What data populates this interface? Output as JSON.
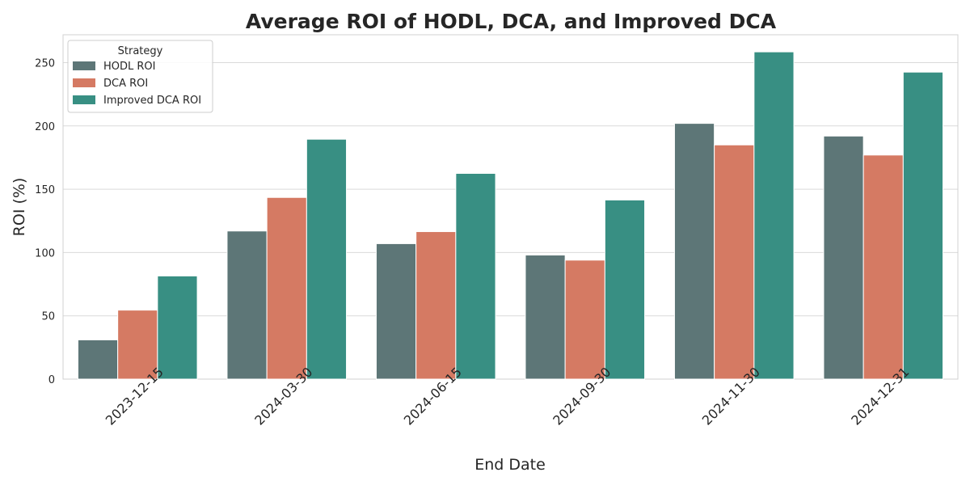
{
  "chart_data": {
    "type": "bar",
    "title": "Average ROI of HODL, DCA, and Improved DCA",
    "xlabel": "End Date",
    "ylabel": "ROI (%)",
    "ylim": [
      0,
      272
    ],
    "yticks": [
      0,
      50,
      100,
      150,
      200,
      250
    ],
    "grid": true,
    "legend": {
      "title": "Strategy",
      "placement": "top-left"
    },
    "categories": [
      "2023-12-15",
      "2024-03-30",
      "2024-06-15",
      "2024-09-30",
      "2024-11-30",
      "2024-12-31"
    ],
    "series": [
      {
        "name": "HODL ROI",
        "color": "#5d7677",
        "values": [
          31,
          117,
          107,
          98,
          202,
          192
        ]
      },
      {
        "name": "DCA ROI",
        "color": "#d57a63",
        "values": [
          54.5,
          143.5,
          116.5,
          94,
          185,
          177
        ]
      },
      {
        "name": "Improved DCA ROI",
        "color": "#388f83",
        "values": [
          81.5,
          189.5,
          162.5,
          141.5,
          258.5,
          242.5
        ]
      }
    ]
  }
}
